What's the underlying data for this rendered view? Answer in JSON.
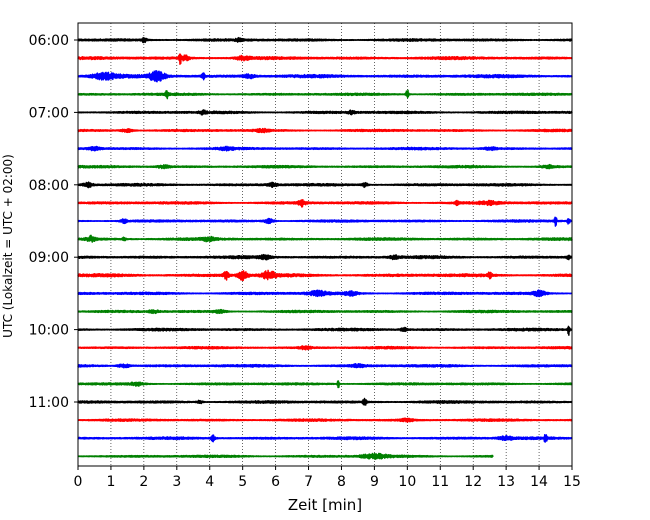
{
  "chart_data": {
    "type": "line",
    "chart_kind": "helicorder",
    "xlabel": "Zeit  [min]",
    "ylabel": "UTC (Lokalzeit = UTC + 02:00)",
    "xlim": [
      0,
      15
    ],
    "x_ticks": [
      0,
      1,
      2,
      3,
      4,
      5,
      6,
      7,
      8,
      9,
      10,
      11,
      12,
      13,
      14,
      15
    ],
    "x_tick_labels": [
      "0",
      "1",
      "2",
      "3",
      "4",
      "5",
      "6",
      "7",
      "8",
      "9",
      "10",
      "11",
      "12",
      "13",
      "14",
      "15"
    ],
    "grid": "vertical dotted lines at each minute",
    "trace_minutes": 15,
    "y_tick_labels": [
      {
        "trace_index": 0,
        "label": "06:00"
      },
      {
        "trace_index": 4,
        "label": "07:00"
      },
      {
        "trace_index": 8,
        "label": "08:00"
      },
      {
        "trace_index": 12,
        "label": "09:00"
      },
      {
        "trace_index": 16,
        "label": "10:00"
      },
      {
        "trace_index": 20,
        "label": "11:00"
      }
    ],
    "color_cycle": [
      "#000000",
      "#ff0000",
      "#0000ff",
      "#008000"
    ],
    "traces": [
      {
        "end_min": 15,
        "noise": 0.45,
        "events": [
          {
            "t": 2.0,
            "a": 1.0,
            "w": 0.08
          },
          {
            "t": 4.9,
            "a": 0.6,
            "w": 0.1
          }
        ]
      },
      {
        "end_min": 15,
        "noise": 0.5,
        "events": [
          {
            "t": 3.1,
            "a": 2.6,
            "w": 0.03
          },
          {
            "t": 3.25,
            "a": 1.0,
            "w": 0.15
          },
          {
            "t": 5.0,
            "a": 0.8,
            "w": 0.2
          }
        ]
      },
      {
        "end_min": 15,
        "noise": 0.55,
        "events": [
          {
            "t": 0.8,
            "a": 1.2,
            "w": 0.4
          },
          {
            "t": 2.4,
            "a": 1.9,
            "w": 0.25
          },
          {
            "t": 3.8,
            "a": 1.5,
            "w": 0.05
          },
          {
            "t": 5.2,
            "a": 0.8,
            "w": 0.2
          }
        ]
      },
      {
        "end_min": 15,
        "noise": 0.4,
        "events": [
          {
            "t": 2.7,
            "a": 2.0,
            "w": 0.04
          },
          {
            "t": 10.0,
            "a": 1.9,
            "w": 0.05
          }
        ]
      },
      {
        "end_min": 15,
        "noise": 0.45,
        "events": [
          {
            "t": 3.8,
            "a": 0.7,
            "w": 0.1
          },
          {
            "t": 8.3,
            "a": 0.7,
            "w": 0.1
          }
        ]
      },
      {
        "end_min": 15,
        "noise": 0.4,
        "events": [
          {
            "t": 1.5,
            "a": 0.7,
            "w": 0.2
          },
          {
            "t": 5.6,
            "a": 0.6,
            "w": 0.2
          }
        ]
      },
      {
        "end_min": 15,
        "noise": 0.4,
        "events": [
          {
            "t": 0.5,
            "a": 0.7,
            "w": 0.2
          },
          {
            "t": 4.5,
            "a": 0.5,
            "w": 0.2
          },
          {
            "t": 12.5,
            "a": 0.6,
            "w": 0.2
          }
        ]
      },
      {
        "end_min": 15,
        "noise": 0.4,
        "events": [
          {
            "t": 2.6,
            "a": 0.6,
            "w": 0.2
          },
          {
            "t": 14.3,
            "a": 0.6,
            "w": 0.2
          }
        ]
      },
      {
        "end_min": 15,
        "noise": 0.45,
        "events": [
          {
            "t": 0.3,
            "a": 1.0,
            "w": 0.15
          },
          {
            "t": 5.9,
            "a": 0.8,
            "w": 0.15
          },
          {
            "t": 8.7,
            "a": 0.9,
            "w": 0.1
          }
        ]
      },
      {
        "end_min": 15,
        "noise": 0.45,
        "events": [
          {
            "t": 6.8,
            "a": 1.3,
            "w": 0.1
          },
          {
            "t": 11.5,
            "a": 1.1,
            "w": 0.05
          },
          {
            "t": 12.5,
            "a": 0.6,
            "w": 0.3
          }
        ]
      },
      {
        "end_min": 15,
        "noise": 0.4,
        "events": [
          {
            "t": 1.4,
            "a": 0.8,
            "w": 0.1
          },
          {
            "t": 5.8,
            "a": 0.9,
            "w": 0.15
          },
          {
            "t": 14.5,
            "a": 3.0,
            "w": 0.03
          },
          {
            "t": 14.9,
            "a": 1.5,
            "w": 0.04
          }
        ]
      },
      {
        "end_min": 15,
        "noise": 0.45,
        "events": [
          {
            "t": 0.4,
            "a": 1.2,
            "w": 0.15
          },
          {
            "t": 1.4,
            "a": 1.1,
            "w": 0.04
          },
          {
            "t": 4.0,
            "a": 0.7,
            "w": 0.2
          }
        ]
      },
      {
        "end_min": 15,
        "noise": 0.5,
        "events": [
          {
            "t": 5.7,
            "a": 0.8,
            "w": 0.15
          },
          {
            "t": 9.6,
            "a": 0.7,
            "w": 0.15
          },
          {
            "t": 14.9,
            "a": 0.9,
            "w": 0.05
          }
        ]
      },
      {
        "end_min": 15,
        "noise": 0.55,
        "events": [
          {
            "t": 4.5,
            "a": 1.7,
            "w": 0.08
          },
          {
            "t": 5.0,
            "a": 1.8,
            "w": 0.15
          },
          {
            "t": 5.8,
            "a": 1.7,
            "w": 0.2
          },
          {
            "t": 12.5,
            "a": 1.2,
            "w": 0.06
          }
        ]
      },
      {
        "end_min": 15,
        "noise": 0.45,
        "events": [
          {
            "t": 7.3,
            "a": 0.9,
            "w": 0.3
          },
          {
            "t": 8.3,
            "a": 0.8,
            "w": 0.2
          },
          {
            "t": 14.0,
            "a": 1.1,
            "w": 0.2
          }
        ]
      },
      {
        "end_min": 15,
        "noise": 0.4,
        "events": [
          {
            "t": 2.3,
            "a": 0.6,
            "w": 0.15
          },
          {
            "t": 4.3,
            "a": 0.6,
            "w": 0.2
          }
        ]
      },
      {
        "end_min": 15,
        "noise": 0.45,
        "events": [
          {
            "t": 9.9,
            "a": 0.7,
            "w": 0.1
          },
          {
            "t": 14.9,
            "a": 2.6,
            "w": 0.03
          }
        ]
      },
      {
        "end_min": 15,
        "noise": 0.4,
        "events": [
          {
            "t": 6.9,
            "a": 0.6,
            "w": 0.2
          }
        ]
      },
      {
        "end_min": 15,
        "noise": 0.45,
        "events": [
          {
            "t": 1.4,
            "a": 0.7,
            "w": 0.2
          },
          {
            "t": 8.5,
            "a": 0.5,
            "w": 0.2
          }
        ]
      },
      {
        "end_min": 15,
        "noise": 0.4,
        "events": [
          {
            "t": 1.8,
            "a": 0.7,
            "w": 0.2
          },
          {
            "t": 7.9,
            "a": 2.2,
            "w": 0.03
          }
        ]
      },
      {
        "end_min": 15,
        "noise": 0.45,
        "events": [
          {
            "t": 3.7,
            "a": 0.6,
            "w": 0.1
          },
          {
            "t": 8.7,
            "a": 1.8,
            "w": 0.05
          }
        ]
      },
      {
        "end_min": 15,
        "noise": 0.4,
        "events": [
          {
            "t": 10.0,
            "a": 0.6,
            "w": 0.2
          }
        ]
      },
      {
        "end_min": 15,
        "noise": 0.45,
        "events": [
          {
            "t": 4.1,
            "a": 1.4,
            "w": 0.06
          },
          {
            "t": 13.0,
            "a": 0.8,
            "w": 0.2
          },
          {
            "t": 14.2,
            "a": 1.5,
            "w": 0.05
          }
        ]
      },
      {
        "end_min": 12.6,
        "noise": 0.4,
        "events": [
          {
            "t": 9.0,
            "a": 0.9,
            "w": 0.4
          }
        ]
      }
    ]
  }
}
